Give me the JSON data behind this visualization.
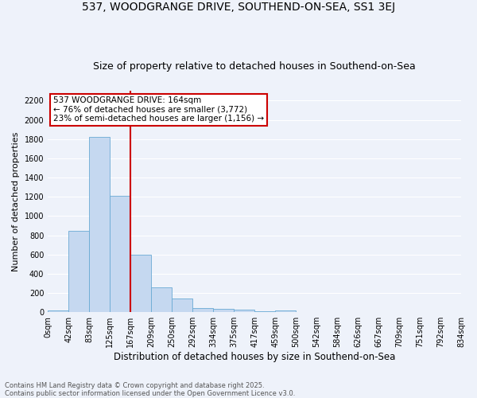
{
  "title1": "537, WOODGRANGE DRIVE, SOUTHEND-ON-SEA, SS1 3EJ",
  "title2": "Size of property relative to detached houses in Southend-on-Sea",
  "xlabel": "Distribution of detached houses by size in Southend-on-Sea",
  "ylabel": "Number of detached properties",
  "bar_values": [
    20,
    845,
    1820,
    1210,
    600,
    255,
    140,
    40,
    38,
    25,
    10,
    15,
    0,
    0,
    0,
    0,
    0,
    0,
    0,
    0
  ],
  "bin_labels": [
    "0sqm",
    "42sqm",
    "83sqm",
    "125sqm",
    "167sqm",
    "209sqm",
    "250sqm",
    "292sqm",
    "334sqm",
    "375sqm",
    "417sqm",
    "459sqm",
    "500sqm",
    "542sqm",
    "584sqm",
    "626sqm",
    "667sqm",
    "709sqm",
    "751sqm",
    "792sqm",
    "834sqm"
  ],
  "bar_color": "#c5d8f0",
  "bar_edgecolor": "#6aaad4",
  "vline_x": 4.0,
  "vline_color": "#cc0000",
  "annotation_text": "537 WOODGRANGE DRIVE: 164sqm\n← 76% of detached houses are smaller (3,772)\n23% of semi-detached houses are larger (1,156) →",
  "annotation_box_color": "#ffffff",
  "annotation_box_edgecolor": "#cc0000",
  "ylim": [
    0,
    2300
  ],
  "yticks": [
    0,
    200,
    400,
    600,
    800,
    1000,
    1200,
    1400,
    1600,
    1800,
    2000,
    2200
  ],
  "bg_color": "#eef2fa",
  "grid_color": "#ffffff",
  "footer_text": "Contains HM Land Registry data © Crown copyright and database right 2025.\nContains public sector information licensed under the Open Government Licence v3.0.",
  "title_fontsize": 10,
  "subtitle_fontsize": 9,
  "xlabel_fontsize": 8.5,
  "ylabel_fontsize": 8,
  "tick_fontsize": 7,
  "annotation_fontsize": 7.5,
  "footer_fontsize": 6
}
